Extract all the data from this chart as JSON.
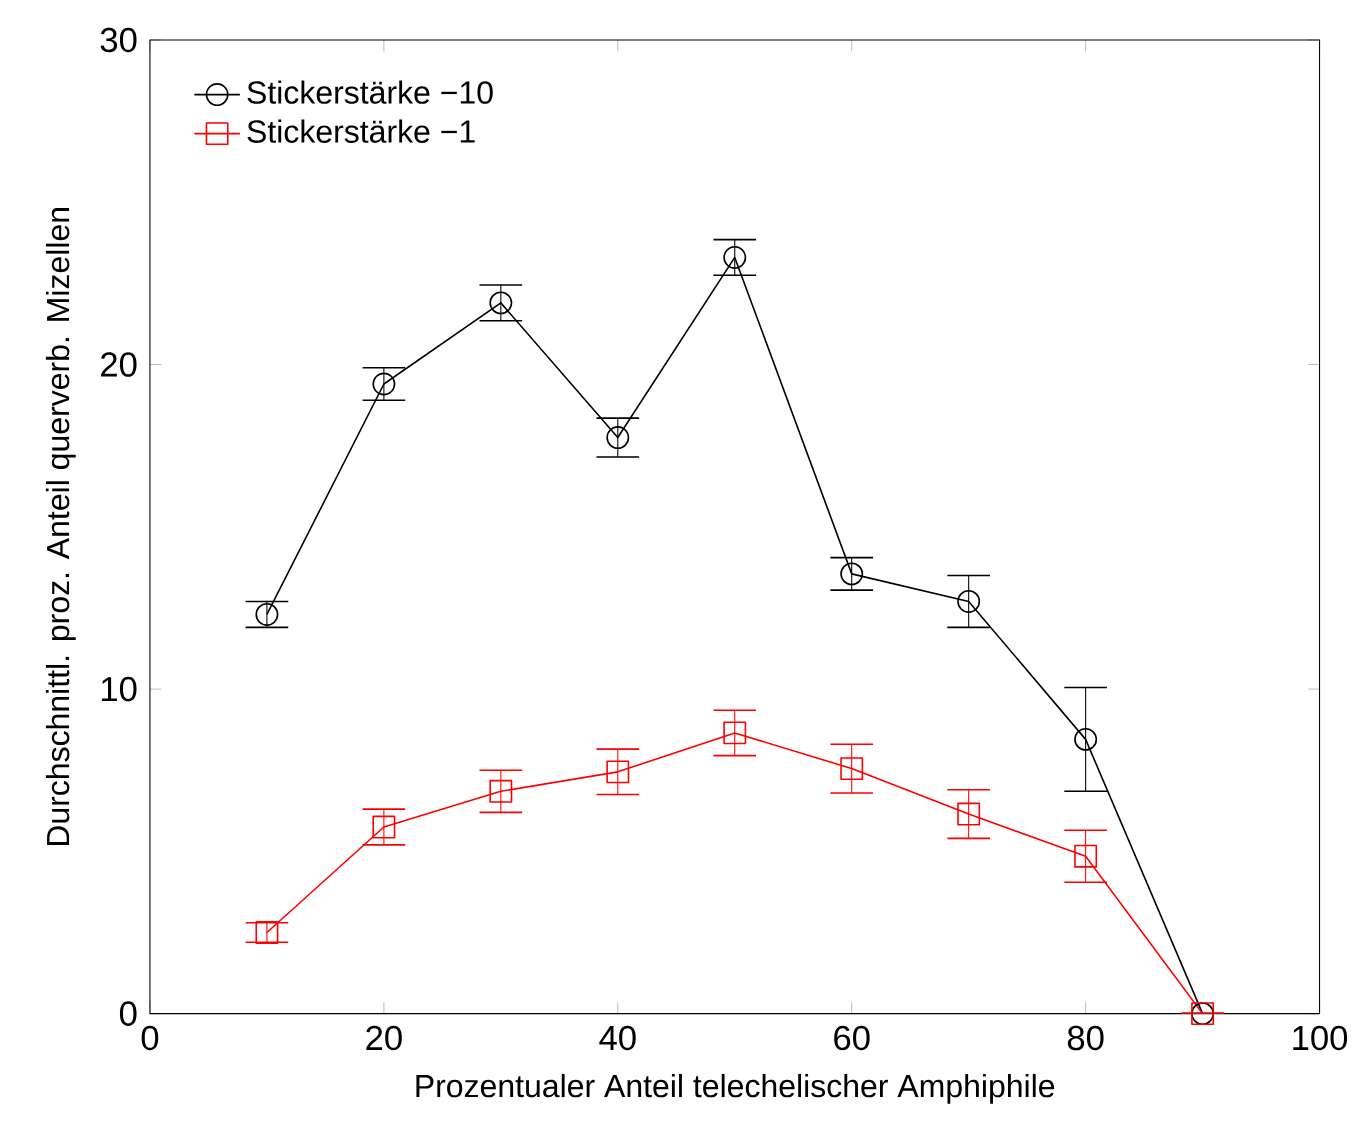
{
  "chart_data": {
    "type": "line",
    "xlabel": "Prozentualer Anteil telechelischer Amphiphile",
    "ylabel": "Durchschnittl. proz. Anteil querverb. Mizellen",
    "x": [
      10,
      20,
      30,
      40,
      50,
      60,
      70,
      80,
      90
    ],
    "series": [
      {
        "name": "Stickerstärke −10",
        "color": "#000000",
        "marker": "circle",
        "values": [
          12.3,
          19.4,
          21.9,
          17.75,
          23.3,
          13.55,
          12.7,
          8.45,
          0
        ],
        "errors": [
          0.4,
          0.5,
          0.55,
          0.6,
          0.55,
          0.5,
          0.8,
          1.6,
          0
        ]
      },
      {
        "name": "Stickerstärke −1",
        "color": "#ff0000",
        "marker": "square",
        "values": [
          2.5,
          5.75,
          6.85,
          7.45,
          8.65,
          7.55,
          6.15,
          4.85,
          0
        ],
        "errors": [
          0.3,
          0.55,
          0.65,
          0.7,
          0.7,
          0.75,
          0.75,
          0.8,
          0
        ]
      }
    ],
    "xlim": [
      0,
      100
    ],
    "xticks": [
      0,
      20,
      40,
      60,
      80,
      100
    ],
    "ylim": [
      0,
      30
    ],
    "yticks": [
      0,
      10,
      20,
      30
    ],
    "grid": false,
    "legend": "top left"
  }
}
